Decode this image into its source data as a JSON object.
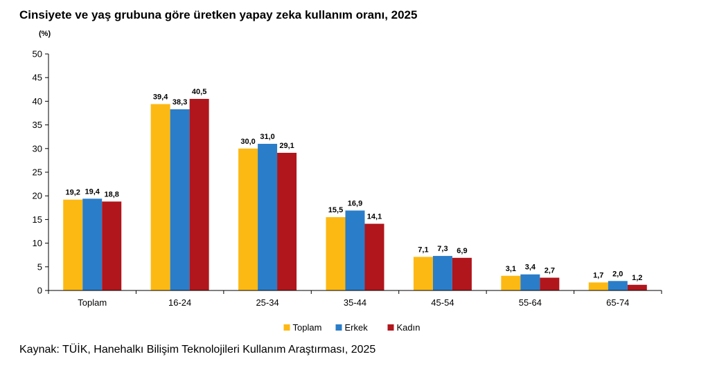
{
  "chart_data": {
    "type": "bar",
    "title": "Cinsiyete ve yaş grubuna göre üretken yapay zeka kullanım oranı, 2025",
    "unit_label": "(%)",
    "source": "Kaynak: TÜİK, Hanehalkı Bilişim Teknolojileri Kullanım Araştırması, 2025",
    "categories": [
      "Toplam",
      "16-24",
      "25-34",
      "35-44",
      "45-54",
      "55-64",
      "65-74"
    ],
    "ylim": [
      0,
      50
    ],
    "yticks": [
      0,
      5,
      10,
      15,
      20,
      25,
      30,
      35,
      40,
      45,
      50
    ],
    "grid": false,
    "legend_position": "bottom-center",
    "series": [
      {
        "name": "Toplam",
        "color": "#FDB913",
        "values": [
          19.2,
          39.4,
          30.0,
          15.5,
          7.1,
          3.1,
          1.7
        ],
        "labels": [
          "19,2",
          "39,4",
          "30,0",
          "15,5",
          "7,1",
          "3,1",
          "1,7"
        ]
      },
      {
        "name": "Erkek",
        "color": "#2A7DC8",
        "values": [
          19.4,
          38.3,
          31.0,
          16.9,
          7.3,
          3.4,
          2.0
        ],
        "labels": [
          "19,4",
          "38,3",
          "31,0",
          "16,9",
          "7,3",
          "3,4",
          "2,0"
        ]
      },
      {
        "name": "Kadın",
        "color": "#B0161C",
        "values": [
          18.8,
          40.5,
          29.1,
          14.1,
          6.9,
          2.7,
          1.2
        ],
        "labels": [
          "18,8",
          "40,5",
          "29,1",
          "14,1",
          "6,9",
          "2,7",
          "1,2"
        ]
      }
    ]
  }
}
